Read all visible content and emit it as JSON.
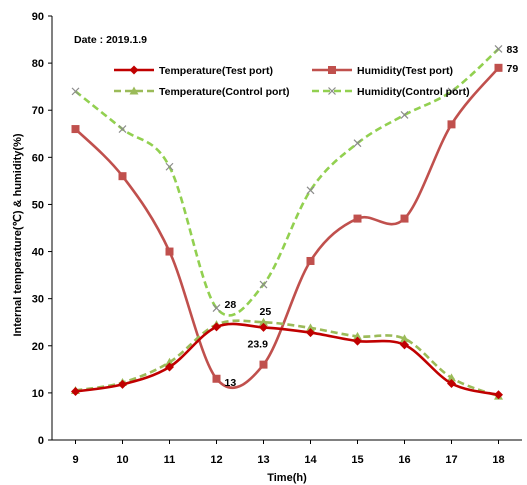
{
  "chart_data": {
    "type": "line",
    "date_label": "Date : 2019.1.9",
    "xlabel": "Time(h)",
    "ylabel": "Internal temperature(℃) & humidity(%)",
    "x": [
      9,
      10,
      11,
      12,
      13,
      14,
      15,
      16,
      17,
      18
    ],
    "xlim": [
      8.5,
      18.5
    ],
    "ylim": [
      0,
      90
    ],
    "yticks": [
      0,
      10,
      20,
      30,
      40,
      50,
      60,
      70,
      80,
      90
    ],
    "grid": false,
    "legend_position": "top",
    "series": [
      {
        "name": "Temperature(Test port)",
        "color": "#c00000",
        "dash": false,
        "marker": "diamond",
        "values": [
          10.3,
          11.8,
          15.5,
          24,
          23.9,
          22.8,
          21,
          20.2,
          12,
          9.6
        ]
      },
      {
        "name": "Humidity(Test port)",
        "color": "#c0504d",
        "dash": false,
        "marker": "square",
        "values": [
          66,
          56,
          40,
          13,
          16,
          38,
          47,
          47,
          67,
          79
        ]
      },
      {
        "name": "Temperature(Control port)",
        "color": "#9bbb59",
        "dash": true,
        "marker": "triangle",
        "values": [
          10.5,
          12.2,
          16.5,
          24.5,
          25,
          23.8,
          22,
          21.5,
          13.2,
          9.3
        ]
      },
      {
        "name": "Humidity(Control port)",
        "color": "#92d050",
        "dash": true,
        "marker": "x",
        "values": [
          74,
          66,
          58,
          28,
          33,
          53,
          63,
          69,
          74,
          83
        ]
      }
    ],
    "annotations": [
      {
        "text": "83",
        "x": 18,
        "y": 83
      },
      {
        "text": "79",
        "x": 18,
        "y": 79
      },
      {
        "text": "28",
        "x": 12,
        "y": 28
      },
      {
        "text": "25",
        "x": 13,
        "y": 25
      },
      {
        "text": "23.9",
        "x": 13,
        "y": 23.9
      },
      {
        "text": "13",
        "x": 12,
        "y": 13
      }
    ]
  }
}
